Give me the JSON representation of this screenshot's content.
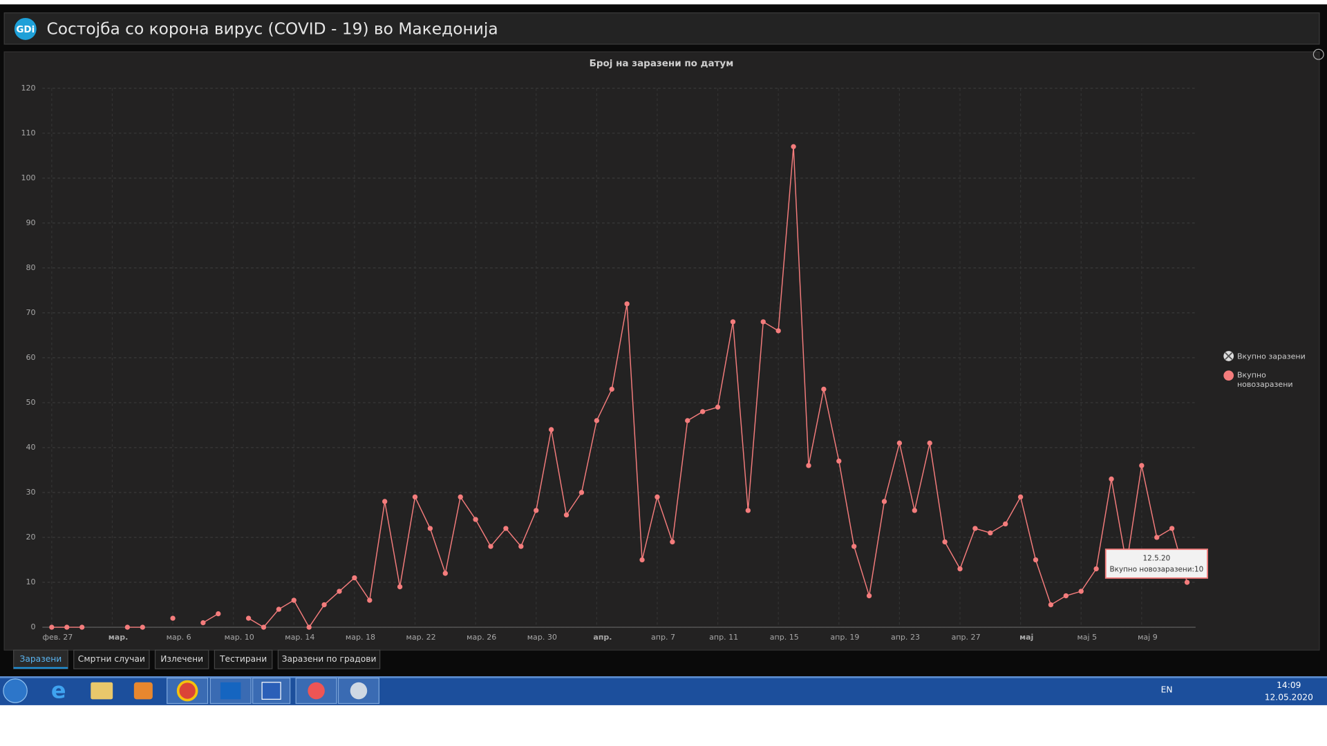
{
  "header": {
    "logo": "GDi",
    "title": "Состојба со корона вирус (COVID - 19) во Македонија"
  },
  "chart_data": {
    "type": "line",
    "title": "Број на заразени по датум",
    "categories": [
      "фев. 27",
      null,
      null,
      null,
      "мар.",
      null,
      null,
      null,
      "мар. 6",
      null,
      null,
      null,
      "мар. 10",
      null,
      null,
      null,
      "мар. 14",
      null,
      null,
      null,
      "мар. 18",
      null,
      null,
      null,
      "мар. 22",
      null,
      null,
      null,
      "мар. 26",
      null,
      null,
      null,
      "мар. 30",
      null,
      null,
      null,
      "апр.",
      null,
      null,
      null,
      "апр. 7",
      null,
      null,
      null,
      "апр. 11",
      null,
      null,
      null,
      "апр. 15",
      null,
      null,
      null,
      "апр. 19",
      null,
      null,
      null,
      "апр. 23",
      null,
      null,
      null,
      "апр. 27",
      null,
      null,
      null,
      "мај",
      null,
      null,
      null,
      "мај 5",
      null,
      null,
      null,
      "мај 9",
      null,
      null,
      null
    ],
    "series": [
      {
        "name": "Вкупно новозаразени",
        "color": "#f47c7c",
        "values": [
          0,
          0,
          0,
          null,
          null,
          0,
          0,
          null,
          2,
          null,
          1,
          3,
          null,
          2,
          0,
          4,
          6,
          0,
          5,
          8,
          11,
          6,
          28,
          9,
          29,
          22,
          12,
          29,
          24,
          18,
          22,
          18,
          26,
          44,
          25,
          30,
          46,
          53,
          72,
          15,
          29,
          19,
          46,
          48,
          49,
          68,
          26,
          68,
          66,
          107,
          36,
          53,
          37,
          18,
          7,
          28,
          41,
          26,
          41,
          19,
          13,
          22,
          21,
          23,
          29,
          15,
          5,
          7,
          8,
          13,
          33,
          14,
          36,
          20,
          22,
          10
        ]
      }
    ],
    "legend_hidden": "Вкупно заразени",
    "ylim": [
      0,
      120
    ],
    "yticks": [
      0,
      10,
      20,
      30,
      40,
      50,
      60,
      70,
      80,
      90,
      100,
      110,
      120
    ],
    "grid": true,
    "tooltip": {
      "date": "12.5.20",
      "text": "Вкупно новозаразени:10"
    }
  },
  "tabs": [
    "Заразени",
    "Смртни случаи",
    "Излечени",
    "Тестирани",
    "Заразени по градови"
  ],
  "active_tab": 0,
  "taskbar": {
    "language": "EN",
    "time": "14:09",
    "date": "12.05.2020"
  }
}
